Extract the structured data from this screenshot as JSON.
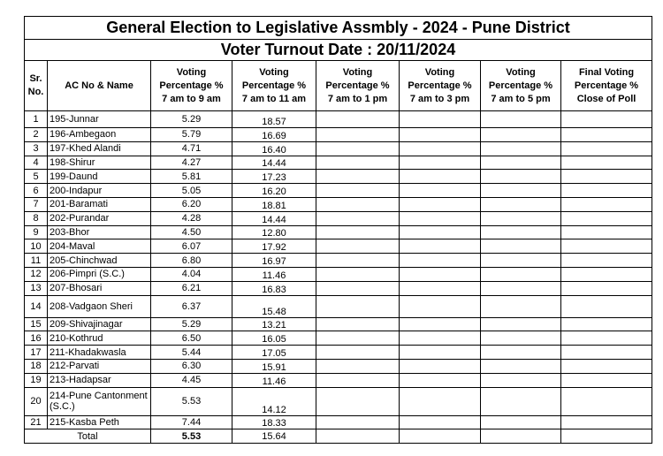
{
  "title": "General Election to Legislative Assmbly - 2024 - Pune District",
  "subtitle": "Voter Turnout Date : 20/11/2024",
  "table": {
    "headers": [
      [
        "Sr.",
        "No."
      ],
      [
        "AC No & Name"
      ],
      [
        "Voting",
        "Percentage %",
        "7 am to 9 am"
      ],
      [
        "Voting",
        "Percentage %",
        "7 am to 11 am"
      ],
      [
        "Voting",
        "Percentage %",
        "7 am to 1 pm"
      ],
      [
        "Voting",
        "Percentage %",
        "7 am to 3 pm"
      ],
      [
        "Voting",
        "Percentage %",
        "7 am to 5 pm"
      ],
      [
        "Final Voting",
        "Percentage %",
        "Close of Poll"
      ]
    ],
    "rows": [
      [
        "1",
        "195-Junnar",
        "5.29",
        "18.57"
      ],
      [
        "2",
        "196-Ambegaon",
        "5.79",
        "16.69"
      ],
      [
        "3",
        "197-Khed Alandi",
        "4.71",
        "16.40"
      ],
      [
        "4",
        "198-Shirur",
        "4.27",
        "14.44"
      ],
      [
        "5",
        "199-Daund",
        "5.81",
        "17.23"
      ],
      [
        "6",
        "200-Indapur",
        "5.05",
        "16.20"
      ],
      [
        "7",
        "201-Baramati",
        "6.20",
        "18.81"
      ],
      [
        "8",
        "202-Purandar",
        "4.28",
        "14.44"
      ],
      [
        "9",
        "203-Bhor",
        "4.50",
        "12.80"
      ],
      [
        "10",
        "204-Maval",
        "6.07",
        "17.92"
      ],
      [
        "11",
        "205-Chinchwad",
        "6.80",
        "16.97"
      ],
      [
        "12",
        "206-Pimpri (S.C.)",
        "4.04",
        "11.46"
      ],
      [
        "13",
        "207-Bhosari",
        "6.21",
        "16.83"
      ],
      [
        "14",
        "208-Vadgaon Sheri",
        "6.37",
        "15.48"
      ],
      [
        "15",
        "209-Shivajinagar",
        "5.29",
        "13.21"
      ],
      [
        "16",
        "210-Kothrud",
        "6.50",
        "16.05"
      ],
      [
        "17",
        "211-Khadakwasla",
        "5.44",
        "17.05"
      ],
      [
        "18",
        "212-Parvati",
        "6.30",
        "15.91"
      ],
      [
        "19",
        "213-Hadapsar",
        "4.45",
        "11.46"
      ],
      [
        "20",
        "214-Pune Cantonment (S.C.)",
        "5.53",
        "14.12"
      ],
      [
        "21",
        "215-Kasba Peth",
        "7.44",
        "18.33"
      ]
    ],
    "total": [
      "Total",
      "5.53",
      "15.64"
    ]
  }
}
